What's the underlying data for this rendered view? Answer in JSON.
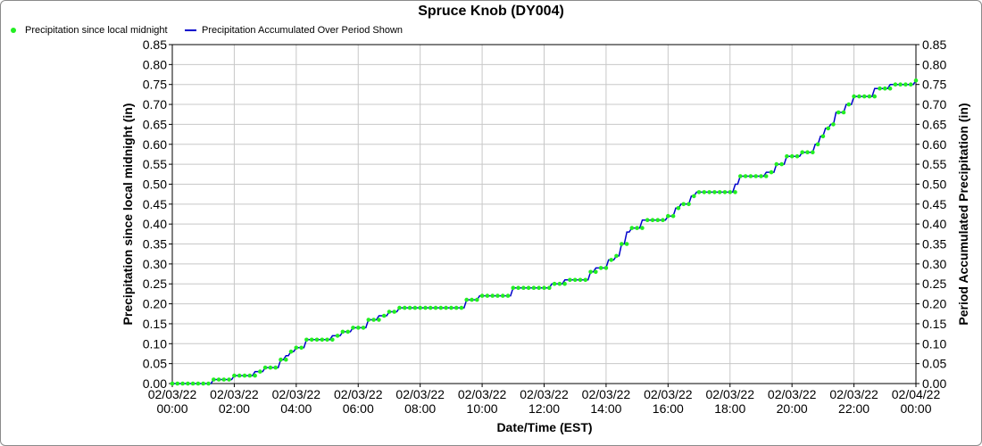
{
  "chart_data": {
    "type": "line",
    "title": "Spruce Knob (DY004)",
    "xlabel": "Date/Time (EST)",
    "ylabel_left": "Precipitation since local midnight (in)",
    "ylabel_right": "Period Accumulated Precipitation (in)",
    "ylim": [
      0,
      0.85
    ],
    "ytick_step": 0.05,
    "xlim_hours": [
      0,
      24
    ],
    "xticks": [
      {
        "date": "02/03/22",
        "time": "00:00",
        "hour": 0
      },
      {
        "date": "02/03/22",
        "time": "02:00",
        "hour": 2
      },
      {
        "date": "02/03/22",
        "time": "04:00",
        "hour": 4
      },
      {
        "date": "02/03/22",
        "time": "06:00",
        "hour": 6
      },
      {
        "date": "02/03/22",
        "time": "08:00",
        "hour": 8
      },
      {
        "date": "02/03/22",
        "time": "10:00",
        "hour": 10
      },
      {
        "date": "02/03/22",
        "time": "12:00",
        "hour": 12
      },
      {
        "date": "02/03/22",
        "time": "14:00",
        "hour": 14
      },
      {
        "date": "02/03/22",
        "time": "16:00",
        "hour": 16
      },
      {
        "date": "02/03/22",
        "time": "18:00",
        "hour": 18
      },
      {
        "date": "02/03/22",
        "time": "20:00",
        "hour": 20
      },
      {
        "date": "02/03/22",
        "time": "22:00",
        "hour": 22
      },
      {
        "date": "02/04/22",
        "time": "00:00",
        "hour": 24
      }
    ],
    "legend_placement": "top-left",
    "grid": true,
    "series": [
      {
        "name": "Precipitation since local midnight",
        "style": "markers",
        "color": "#22ee22"
      },
      {
        "name": "Precipitation Accumulated Over Period Shown",
        "style": "line",
        "color": "#0000cc"
      }
    ],
    "steps": [
      [
        0,
        0.0
      ],
      [
        1.33,
        0.01
      ],
      [
        2.0,
        0.02
      ],
      [
        2.67,
        0.03
      ],
      [
        3.0,
        0.04
      ],
      [
        3.5,
        0.06
      ],
      [
        3.67,
        0.07
      ],
      [
        3.83,
        0.08
      ],
      [
        4.0,
        0.09
      ],
      [
        4.33,
        0.11
      ],
      [
        5.17,
        0.12
      ],
      [
        5.5,
        0.13
      ],
      [
        5.83,
        0.14
      ],
      [
        6.33,
        0.16
      ],
      [
        6.67,
        0.17
      ],
      [
        7.0,
        0.18
      ],
      [
        7.33,
        0.19
      ],
      [
        9.5,
        0.21
      ],
      [
        9.92,
        0.22
      ],
      [
        11.0,
        0.24
      ],
      [
        12.25,
        0.25
      ],
      [
        12.67,
        0.26
      ],
      [
        13.5,
        0.28
      ],
      [
        13.67,
        0.29
      ],
      [
        14.08,
        0.31
      ],
      [
        14.33,
        0.32
      ],
      [
        14.5,
        0.35
      ],
      [
        14.67,
        0.38
      ],
      [
        14.83,
        0.39
      ],
      [
        15.17,
        0.41
      ],
      [
        16.0,
        0.42
      ],
      [
        16.25,
        0.44
      ],
      [
        16.42,
        0.45
      ],
      [
        16.75,
        0.47
      ],
      [
        16.92,
        0.48
      ],
      [
        18.17,
        0.5
      ],
      [
        18.33,
        0.52
      ],
      [
        19.17,
        0.53
      ],
      [
        19.5,
        0.55
      ],
      [
        19.83,
        0.57
      ],
      [
        20.33,
        0.58
      ],
      [
        20.75,
        0.6
      ],
      [
        20.92,
        0.62
      ],
      [
        21.08,
        0.64
      ],
      [
        21.25,
        0.65
      ],
      [
        21.42,
        0.68
      ],
      [
        21.75,
        0.7
      ],
      [
        22.0,
        0.72
      ],
      [
        22.67,
        0.74
      ],
      [
        23.17,
        0.75
      ],
      [
        24.0,
        0.76
      ]
    ]
  },
  "colors": {
    "marker": "#22ee22",
    "line": "#0000cc",
    "grid": "#c8c8c8",
    "axis": "#000000"
  }
}
